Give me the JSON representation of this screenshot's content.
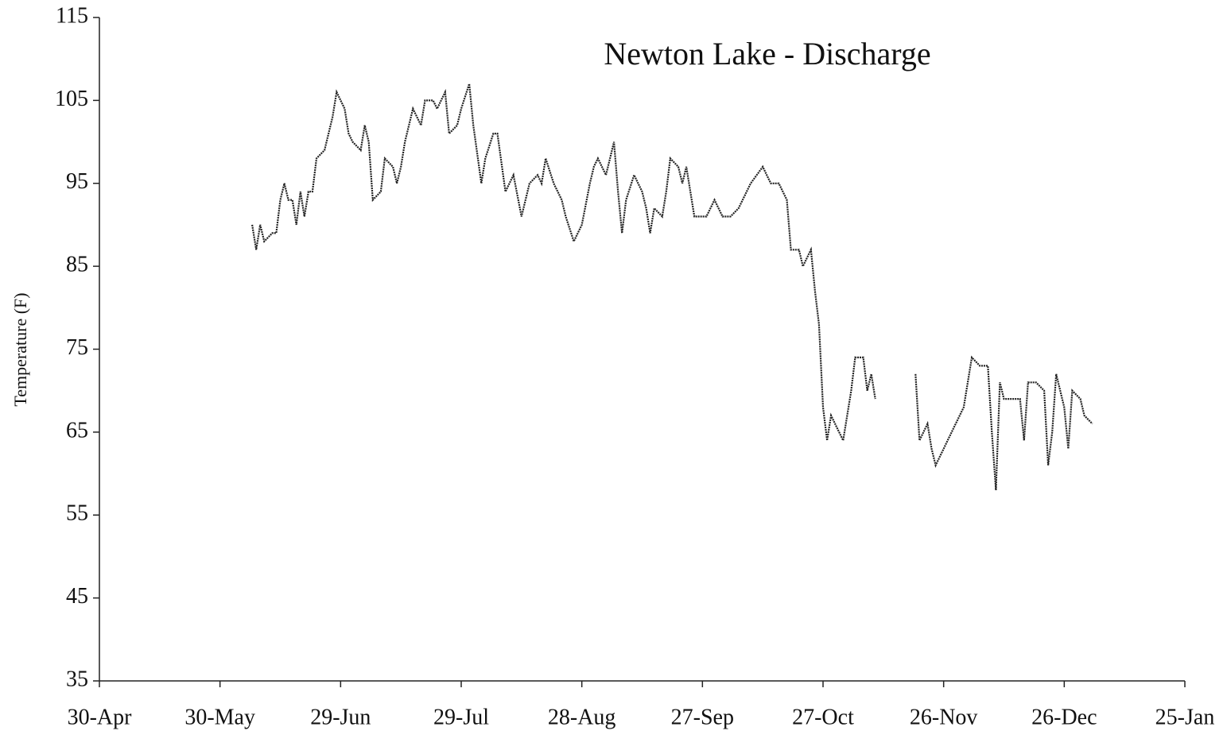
{
  "chart_data": {
    "type": "line",
    "title": "Newton Lake - Discharge",
    "y_label": "Temperature (F)",
    "x": [
      38,
      39,
      40,
      41,
      43,
      44,
      45,
      46,
      47,
      48,
      49,
      50,
      51,
      52,
      53,
      54,
      56,
      58,
      59,
      61,
      62,
      63,
      65,
      66,
      67,
      68,
      70,
      71,
      73,
      74,
      75,
      76,
      78,
      80,
      81,
      83,
      84,
      86,
      87,
      89,
      90,
      92,
      93,
      95,
      96,
      98,
      99,
      101,
      103,
      105,
      107,
      109,
      110,
      111,
      113,
      115,
      116,
      118,
      120,
      122,
      123,
      124,
      126,
      127,
      128,
      129,
      130,
      131,
      133,
      135,
      136,
      137,
      138,
      140,
      141,
      142,
      144,
      145,
      146,
      148,
      149,
      151,
      153,
      155,
      157,
      159,
      162,
      165,
      167,
      169,
      171,
      172,
      174,
      175,
      177,
      178,
      179,
      180,
      181,
      182,
      184,
      185,
      187,
      188,
      190,
      191,
      192,
      193,
      198,
      203,
      204,
      206,
      207,
      208,
      210,
      211,
      213,
      215,
      217,
      219,
      221,
      222,
      223,
      224,
      225,
      227,
      229,
      230,
      231,
      233,
      235,
      236,
      237,
      238,
      240,
      241,
      242,
      244,
      245,
      247
    ],
    "series": [
      {
        "name": "Discharge",
        "color": "#222222",
        "values": [
          90,
          87,
          90,
          88,
          89,
          89,
          93,
          95,
          93,
          93,
          90,
          94,
          91,
          94,
          94,
          98,
          99,
          103,
          106,
          104,
          101,
          100,
          99,
          102,
          100,
          93,
          94,
          98,
          97,
          95,
          97,
          100,
          104,
          102,
          105,
          105,
          104,
          106,
          101,
          102,
          104,
          107,
          102,
          95,
          98,
          101,
          101,
          94,
          96,
          91,
          95,
          96,
          95,
          98,
          95,
          93,
          91,
          88,
          90,
          95,
          97,
          98,
          96,
          98,
          100,
          94,
          89,
          93,
          96,
          94,
          92,
          89,
          92,
          91,
          94,
          98,
          97,
          95,
          97,
          91,
          91,
          91,
          93,
          91,
          91,
          92,
          95,
          97,
          95,
          95,
          93,
          87,
          87,
          85,
          87,
          82,
          78,
          68,
          64,
          67,
          65,
          64,
          70,
          74,
          74,
          70,
          72,
          69,
          null,
          72,
          64,
          66,
          63,
          61,
          63,
          64,
          66,
          68,
          74,
          73,
          73,
          65,
          58,
          71,
          69,
          69,
          69,
          64,
          71,
          71,
          70,
          61,
          65,
          72,
          68,
          63,
          70,
          69,
          67,
          66
        ]
      }
    ],
    "xlim": [
      0,
      270
    ],
    "xticks": [
      {
        "value": 0,
        "label": "30-Apr"
      },
      {
        "value": 30,
        "label": "30-May"
      },
      {
        "value": 60,
        "label": "29-Jun"
      },
      {
        "value": 90,
        "label": "29-Jul"
      },
      {
        "value": 120,
        "label": "28-Aug"
      },
      {
        "value": 150,
        "label": "27-Sep"
      },
      {
        "value": 180,
        "label": "27-Oct"
      },
      {
        "value": 210,
        "label": "26-Nov"
      },
      {
        "value": 240,
        "label": "26-Dec"
      },
      {
        "value": 270,
        "label": "25-Jan"
      }
    ],
    "ylim": [
      35,
      115
    ],
    "yticks": [
      35,
      45,
      55,
      65,
      75,
      85,
      95,
      105,
      115
    ]
  }
}
